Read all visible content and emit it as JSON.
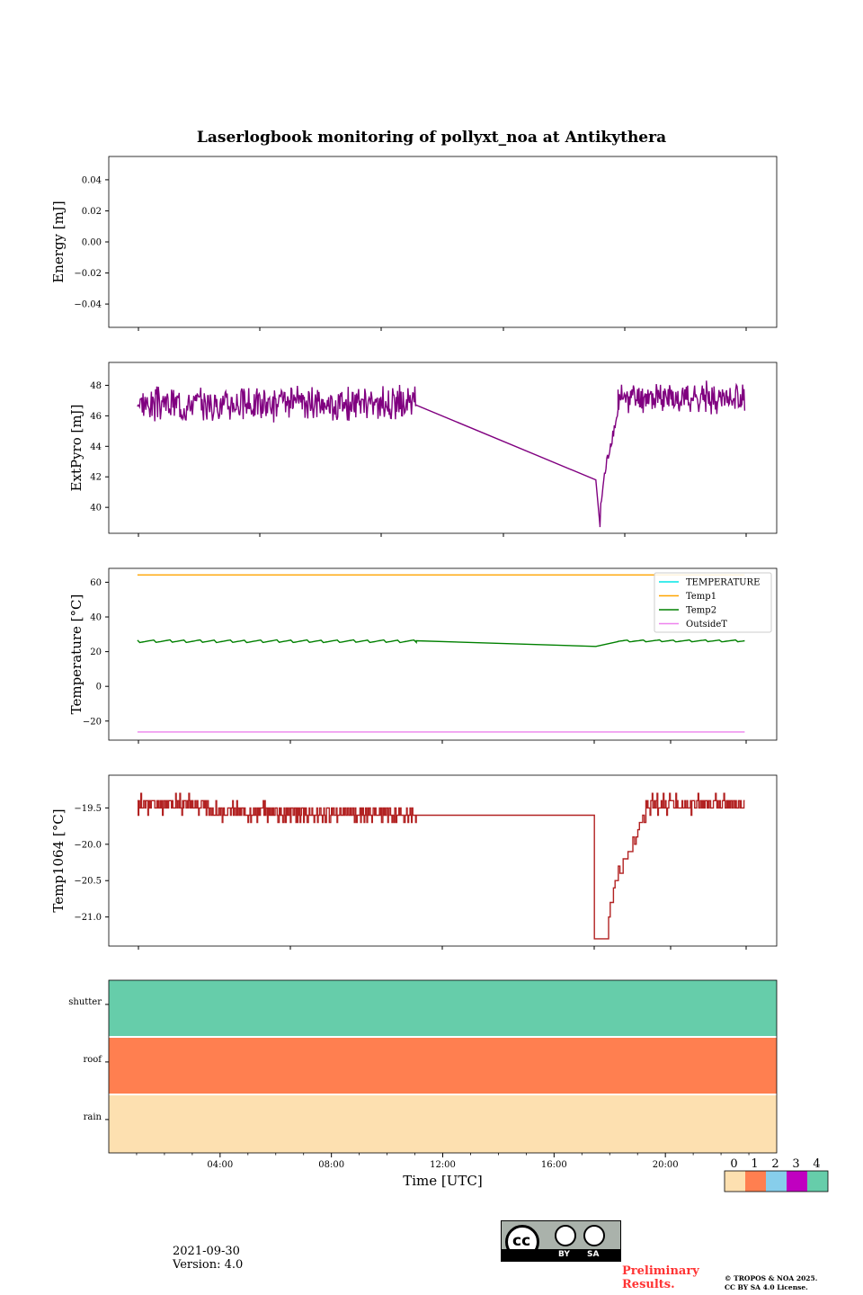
{
  "title": "Laserlogbook monitoring of pollyxt_noa at Antikythera",
  "footer": {
    "date": "2021-09-30",
    "version": "Version: 4.0",
    "preliminary_line1": "Preliminary",
    "preliminary_line2": "Results.",
    "copyright_line1": "© TROPOS & NOA 2025.",
    "copyright_line2": "CC BY SA 4.0 License.",
    "license_badge": {
      "by": "BY",
      "sa": "SA",
      "cc": "cc"
    }
  },
  "chart_data": [
    {
      "type": "line",
      "ylabel": "Energy [mJ]",
      "ylim": [
        -0.055,
        0.055
      ],
      "yticks": [
        0.04,
        0.02,
        0.0,
        -0.02,
        -0.04
      ],
      "ytick_labels": [
        "0.04",
        "0.02",
        "0.00",
        "−0.02",
        "−0.04"
      ],
      "series": []
    },
    {
      "type": "line",
      "ylabel": "ExtPyro [mJ]",
      "ylim": [
        38.3,
        49.5
      ],
      "yticks": [
        40,
        42,
        44,
        46,
        48
      ],
      "ytick_labels": [
        "40",
        "42",
        "44",
        "46",
        "48"
      ],
      "series": [
        {
          "color": "#800080",
          "segments": [
            {
              "x": [
                1.03,
                11.05
              ],
              "mean": 46.8,
              "amp": 0.9,
              "seed": 3
            },
            {
              "x": [
                11.05,
                17.5
              ],
              "y": [
                46.7,
                41.8
              ]
            },
            {
              "x": [
                17.5,
                17.65
              ],
              "y": [
                41.8,
                38.8
              ]
            },
            {
              "x": [
                17.65,
                18.3
              ],
              "y": [
                38.8,
                46.2
              ],
              "noisy": true
            },
            {
              "x": [
                18.3,
                22.85
              ],
              "mean": 47.2,
              "amp": 0.8,
              "seed": 7
            }
          ]
        }
      ]
    },
    {
      "type": "line",
      "ylabel": "Temperature [°C]",
      "ylim": [
        -31,
        68
      ],
      "yticks": [
        60,
        40,
        20,
        0,
        -20
      ],
      "ytick_labels": [
        "60",
        "40",
        "20",
        "0",
        "−20"
      ],
      "legend": {
        "position": "top-right",
        "entries": [
          "TEMPERATURE",
          "Temp1",
          "Temp2",
          "OutsideT"
        ]
      },
      "series": [
        {
          "name": "TEMPERATURE",
          "color": "#00e5e5",
          "segments": []
        },
        {
          "name": "Temp1",
          "color": "#ffa500",
          "segments": [
            {
              "x": [
                1.03,
                22.85
              ],
              "y": [
                64.2,
                64.2
              ]
            }
          ]
        },
        {
          "name": "Temp2",
          "color": "#008000",
          "segments": [
            {
              "x": [
                1.03,
                11.05
              ],
              "mean": 26.0,
              "amp": 0.8,
              "sawtooth": 0.55
            },
            {
              "x": [
                11.05,
                17.5
              ],
              "y": [
                26.3,
                23.0
              ]
            },
            {
              "x": [
                17.5,
                18.3
              ],
              "y": [
                23.0,
                25.8
              ]
            },
            {
              "x": [
                18.3,
                22.85
              ],
              "mean": 26.2,
              "amp": 0.6,
              "sawtooth": 0.55
            }
          ]
        },
        {
          "name": "OutsideT",
          "color": "#ee82ee",
          "segments": [
            {
              "x": [
                1.03,
                22.85
              ],
              "y": [
                -26.3,
                -26.3
              ]
            }
          ]
        }
      ]
    },
    {
      "type": "line",
      "ylabel": "Temp1064 [°C]",
      "ylim": [
        -21.4,
        -19.05
      ],
      "yticks": [
        -19.5,
        -20.0,
        -20.5,
        -21.0
      ],
      "ytick_labels": [
        "−19.5",
        "−20.0",
        "−20.5",
        "−21.0"
      ],
      "series": [
        {
          "color": "#b22222",
          "step": 0.1,
          "segments": [
            {
              "x": [
                1.03,
                3.5
              ],
              "mean": -19.45,
              "amp": 0.1,
              "seed": 11
            },
            {
              "x": [
                3.5,
                6.0
              ],
              "mean": -19.55,
              "amp": 0.1,
              "seed": 13
            },
            {
              "x": [
                6.0,
                11.05
              ],
              "mean": -19.58,
              "amp": 0.1,
              "seed": 17
            },
            {
              "x": [
                11.05,
                17.45
              ],
              "y": [
                -19.6,
                -21.2
              ]
            },
            {
              "x": [
                17.45,
                17.9
              ],
              "y": [
                -21.3,
                -21.3
              ]
            },
            {
              "x": [
                17.9,
                19.3
              ],
              "y": [
                -21.2,
                -19.6
              ],
              "noisy": true
            },
            {
              "x": [
                19.3,
                22.85
              ],
              "mean": -19.45,
              "amp": 0.1,
              "seed": 19
            }
          ]
        }
      ]
    },
    {
      "type": "heatmap",
      "categories": [
        "shutter",
        "roof",
        "rain"
      ],
      "colorbar": {
        "ticks": [
          "0",
          "1",
          "2",
          "3",
          "4"
        ],
        "colors": [
          "#fde0b0",
          "#ff7f50",
          "#87ceeb",
          "#c000c0",
          "#66cdaa"
        ]
      },
      "rows": [
        {
          "label": "shutter",
          "level": 4
        },
        {
          "label": "roof",
          "level": 1
        },
        {
          "label": "rain",
          "level": 0
        }
      ],
      "xlabel": "Time [UTC]",
      "xlim": [
        0,
        24
      ],
      "xtick_labels": [
        "04:00",
        "08:00",
        "12:00",
        "16:00",
        "20:00"
      ],
      "xticks": [
        4,
        8,
        12,
        16,
        20
      ]
    }
  ]
}
